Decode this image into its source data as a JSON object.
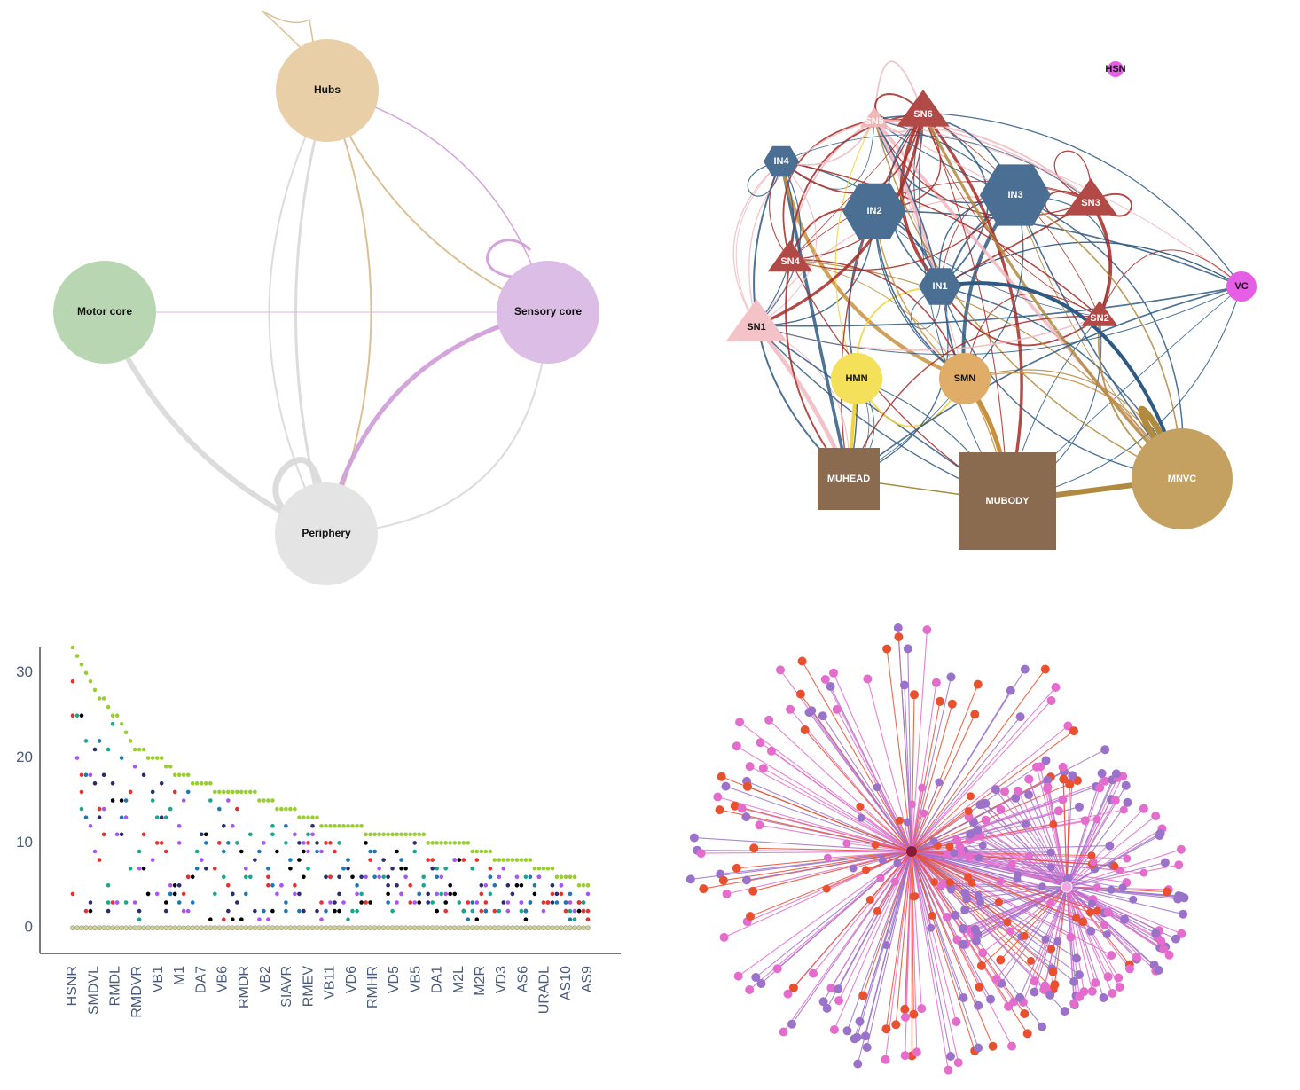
{
  "chart_data": [
    {
      "type": "network",
      "nodes": [
        {
          "id": "hubs",
          "label": "Hubs",
          "color": "#e8cfa8"
        },
        {
          "id": "motor",
          "label": "Motor core",
          "color": "#b9d6b3"
        },
        {
          "id": "sensory",
          "label": "Sensory core",
          "color": "#dcbde6"
        },
        {
          "id": "periphery",
          "label": "Periphery",
          "color": "#e4e4e4"
        }
      ],
      "edges": [
        {
          "from": "hubs",
          "to": "hubs",
          "color": "#d8b98a",
          "weight": 1.5
        },
        {
          "from": "hubs",
          "to": "sensory",
          "color": "#d8b98a",
          "weight": 2
        },
        {
          "from": "hubs",
          "to": "sensory",
          "color": "#cf9bd9",
          "weight": 1.5
        },
        {
          "from": "hubs",
          "to": "periphery",
          "color": "#d8d8d8",
          "weight": 3
        },
        {
          "from": "hubs",
          "to": "periphery",
          "color": "#d8b98a",
          "weight": 2
        },
        {
          "from": "hubs",
          "to": "periphery",
          "color": "#d8d8d8",
          "weight": 2
        },
        {
          "from": "motor",
          "to": "sensory",
          "color": "#dcaee6",
          "weight": 1
        },
        {
          "from": "motor",
          "to": "periphery",
          "color": "#d8d8d8",
          "weight": 6
        },
        {
          "from": "sensory",
          "to": "sensory",
          "color": "#cf9bd9",
          "weight": 3
        },
        {
          "from": "sensory",
          "to": "periphery",
          "color": "#cf9bd9",
          "weight": 5
        },
        {
          "from": "sensory",
          "to": "periphery",
          "color": "#d8d8d8",
          "weight": 2
        },
        {
          "from": "periphery",
          "to": "periphery",
          "color": "#d8d8d8",
          "weight": 7
        }
      ]
    },
    {
      "type": "network",
      "nodes": [
        {
          "id": "HSN",
          "label": "HSN",
          "shape": "circle",
          "color": "#e55ee5"
        },
        {
          "id": "SN5",
          "label": "SN5",
          "shape": "triangle",
          "color": "#f1b7b7"
        },
        {
          "id": "SN6",
          "label": "SN6",
          "shape": "triangle",
          "color": "#b14a47"
        },
        {
          "id": "IN4",
          "label": "IN4",
          "shape": "hexagon",
          "color": "#4a6f93"
        },
        {
          "id": "IN2",
          "label": "IN2",
          "shape": "hexagon",
          "color": "#4a6f93"
        },
        {
          "id": "IN3",
          "label": "IN3",
          "shape": "hexagon",
          "color": "#4a6f93"
        },
        {
          "id": "SN3",
          "label": "SN3",
          "shape": "triangle",
          "color": "#b14a47"
        },
        {
          "id": "SN4",
          "label": "SN4",
          "shape": "triangle",
          "color": "#b14a47"
        },
        {
          "id": "IN1",
          "label": "IN1",
          "shape": "hexagon",
          "color": "#4a6f93"
        },
        {
          "id": "VC",
          "label": "VC",
          "shape": "circle",
          "color": "#e55ee5"
        },
        {
          "id": "SN2",
          "label": "SN2",
          "shape": "triangle",
          "color": "#b14a47"
        },
        {
          "id": "SN1",
          "label": "SN1",
          "shape": "triangle",
          "color": "#f4c3c8"
        },
        {
          "id": "HMN",
          "label": "HMN",
          "shape": "circle",
          "color": "#f4e059"
        },
        {
          "id": "SMN",
          "label": "SMN",
          "shape": "circle",
          "color": "#e0ad69"
        },
        {
          "id": "MUHEAD",
          "label": "MUHEAD",
          "shape": "square",
          "color": "#8b6b50"
        },
        {
          "id": "MUBODY",
          "label": "MUBODY",
          "shape": "square",
          "color": "#8b6b50"
        },
        {
          "id": "MNVC",
          "label": "MNVC",
          "shape": "circle",
          "color": "#c4a061"
        }
      ],
      "colors": {
        "interneuron": "#2f5a83",
        "sensory": "#a52a26",
        "sensory_light": "#f0b8c0",
        "head_motor": "#f1d33d",
        "body_motor": "#c8903e",
        "muscle": "#8b6b50",
        "mnvc": "#b08a3e"
      }
    },
    {
      "type": "scatter",
      "categories": [
        "HSNR",
        "SMDVL",
        "RMDL",
        "RMDVR",
        "VB1",
        "M1",
        "DA7",
        "VB6",
        "RMDR",
        "VB2",
        "SIAVR",
        "RMEV",
        "VB11",
        "VD6",
        "RMHR",
        "VD5",
        "VB5",
        "DA1",
        "M2L",
        "M2R",
        "VD3",
        "AS6",
        "URADL",
        "AS10",
        "AS9"
      ],
      "yticks": [
        0,
        10,
        20,
        30
      ],
      "ylim": [
        -3,
        33
      ],
      "series_colors": [
        "#9acd32",
        "#000000",
        "#e8302e",
        "#19a78a",
        "#1f77b4",
        "#2b2d6e",
        "#a855f7",
        "#cfcf9b"
      ],
      "upper_envelope": [
        33,
        28,
        25,
        21,
        20,
        18,
        17,
        16,
        16,
        15,
        14,
        13,
        12,
        12,
        11,
        11,
        11,
        10,
        10,
        9,
        8,
        8,
        7,
        6,
        5
      ]
    },
    {
      "type": "network",
      "colors": {
        "red": "#e8502e",
        "pink": "#e36ccd",
        "purple": "#9b72c9",
        "dark": "#8b1a3a"
      }
    }
  ]
}
